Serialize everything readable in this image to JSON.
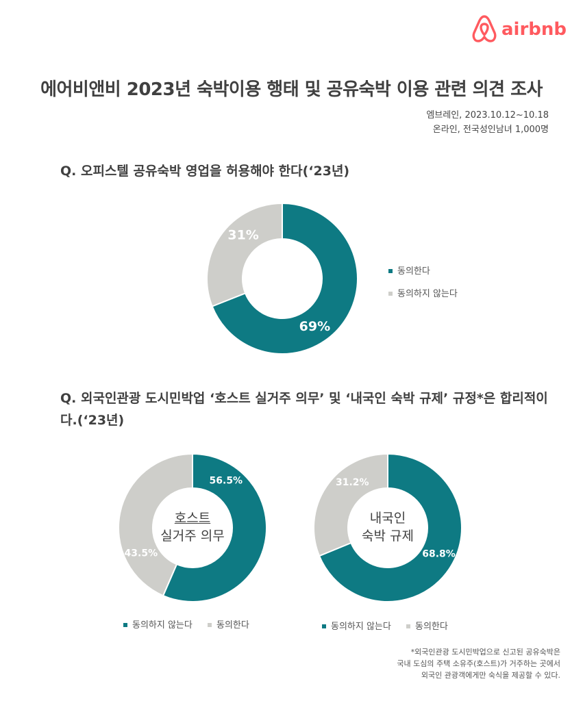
{
  "brand": {
    "name": "airbnb",
    "color": "#ff5a5f",
    "icon": "airbnb-belo-icon"
  },
  "header": {
    "title": "에어비앤비 2023년 숙박이용 행태 및 공유숙박 이용 관련 의견 조사",
    "meta_line1": "엠브레인, 2023.10.12~10.18",
    "meta_line2": "온라인, 전국성인남녀 1,000명"
  },
  "colors": {
    "agree": "#0e7a83",
    "disagree": "#cececa"
  },
  "questions": {
    "q1": "Q. 오피스텔 공유숙박 영업을 허용해야 한다(‘23년)",
    "q2": "Q. 외국인관광 도시민박업 ‘호스트 실거주 의무’ 및 ‘내국인 숙박 규제’ 규정*은 합리적이다.(‘23년)"
  },
  "chart_data": [
    {
      "type": "pie",
      "subtype": "donut",
      "center_label": "",
      "labels": [
        "동의한다",
        "동의하지 않는다"
      ],
      "values": [
        69,
        31
      ],
      "value_labels": [
        "69%",
        "31%"
      ],
      "colors": [
        "#0e7a83",
        "#cececa"
      ],
      "legend": [
        "동의한다",
        "동의하지 않는다"
      ],
      "legend_placement": "right"
    },
    {
      "type": "pie",
      "subtype": "donut",
      "center_label_line1": "호스트",
      "center_label_line2": "실거주 의무",
      "labels": [
        "동의하지 않는다",
        "동의한다"
      ],
      "values": [
        56.5,
        43.5
      ],
      "value_labels": [
        "56.5%",
        "43.5%"
      ],
      "colors": [
        "#0e7a83",
        "#cececa"
      ],
      "legend": [
        "동의하지 않는다",
        "동의한다"
      ],
      "legend_placement": "bottom"
    },
    {
      "type": "pie",
      "subtype": "donut",
      "center_label_line1": "내국인",
      "center_label_line2": "숙박 규제",
      "labels": [
        "동의하지 않는다",
        "동의한다"
      ],
      "values": [
        68.8,
        31.2
      ],
      "value_labels": [
        "68.8%",
        "31.2%"
      ],
      "colors": [
        "#0e7a83",
        "#cececa"
      ],
      "legend": [
        "동의하지 않는다",
        "동의한다"
      ],
      "legend_placement": "bottom"
    }
  ],
  "footnote": {
    "line1": "*외국인관광 도시민박업으로 신고된 공유숙박은",
    "line2": "국내 도심의 주택 소유주(호스트)가 거주하는 곳에서",
    "line3": "외국인 관광객에게만 숙식을 제공할 수 있다."
  }
}
